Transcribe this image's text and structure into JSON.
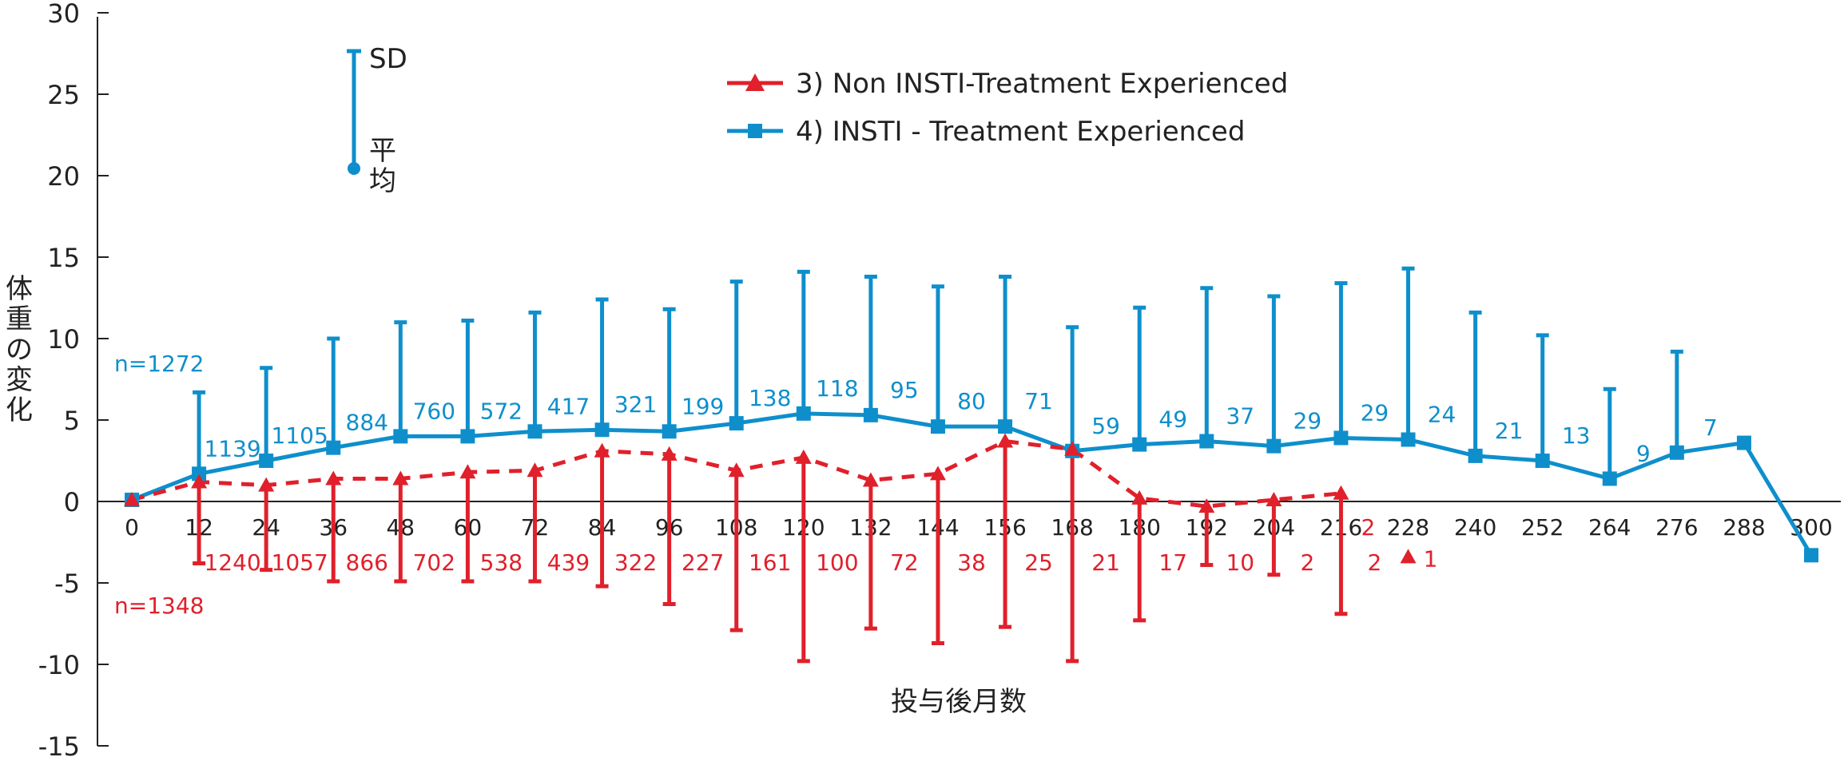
{
  "chart_data": {
    "type": "line",
    "xlabel": "投与後月数",
    "ylabel": "体重の変化",
    "ylim": [
      -15,
      30
    ],
    "yticks": [
      30,
      25,
      20,
      15,
      10,
      5,
      0,
      -5,
      -10,
      -15
    ],
    "ytick_labels": [
      "30",
      "25",
      "20",
      "15",
      "10",
      "5",
      "0",
      "-5",
      "-10",
      "-15"
    ],
    "xticks": [
      0,
      12,
      24,
      36,
      48,
      60,
      72,
      84,
      96,
      108,
      120,
      132,
      144,
      156,
      168,
      180,
      192,
      204,
      216,
      228,
      240,
      252,
      264,
      276,
      288,
      300
    ],
    "xtick_labels": [
      "0",
      "12",
      "24",
      "36",
      "48",
      "60",
      "72",
      "84",
      "96",
      "108",
      "120",
      "132",
      "144",
      "156",
      "168",
      "180",
      "192",
      "204",
      "216",
      "228",
      "240",
      "252",
      "264",
      "276",
      "288",
      "300"
    ],
    "sd_legend": {
      "sd_label": "SD",
      "mean_label": "平均"
    },
    "series": [
      {
        "name": "3) Non INSTI-Treatment Experienced",
        "color": "#e0202b",
        "marker": "triangle",
        "line_style": "dashed",
        "x": [
          0,
          12,
          24,
          36,
          48,
          60,
          72,
          84,
          96,
          108,
          120,
          132,
          144,
          156,
          168,
          180,
          192,
          204,
          216
        ],
        "mean": [
          0.1,
          1.2,
          1.0,
          1.4,
          1.4,
          1.8,
          1.9,
          3.1,
          2.9,
          1.9,
          2.7,
          1.3,
          1.7,
          3.7,
          3.2,
          0.2,
          -0.3,
          0.1,
          0.5
        ],
        "sd_end": [
          0.1,
          -3.8,
          -4.2,
          -4.9,
          -4.9,
          -4.9,
          -4.9,
          -5.2,
          -6.3,
          -7.9,
          -9.8,
          -7.8,
          -8.7,
          -7.7,
          -9.8,
          -7.3,
          -3.9,
          -4.5,
          -6.9
        ],
        "n_label": "n=1348",
        "n_counts": [
          "",
          "1240",
          "1057",
          "866",
          "702",
          "538",
          "439",
          "322",
          "227",
          "161",
          "100",
          "72",
          "38",
          "25",
          "21",
          "17",
          "10",
          "2",
          "2"
        ],
        "extra_point": {
          "x": 228,
          "value": -3.4,
          "count": "1",
          "extra_count": "2"
        }
      },
      {
        "name": "4) INSTI - Treatment Experienced",
        "color": "#0e8fcc",
        "marker": "square",
        "line_style": "solid",
        "x": [
          0,
          12,
          24,
          36,
          48,
          60,
          72,
          84,
          96,
          108,
          120,
          132,
          144,
          156,
          168,
          180,
          192,
          204,
          216,
          228,
          240,
          252,
          264,
          276,
          288,
          300
        ],
        "mean": [
          0.1,
          1.7,
          2.5,
          3.3,
          4.0,
          4.0,
          4.3,
          4.4,
          4.3,
          4.8,
          5.4,
          5.3,
          4.6,
          4.6,
          3.1,
          3.5,
          3.7,
          3.4,
          3.9,
          3.8,
          2.8,
          2.5,
          1.4,
          3.0,
          3.6,
          -3.3
        ],
        "sd_end": [
          null,
          6.7,
          8.2,
          10.0,
          11.0,
          11.1,
          11.6,
          12.4,
          11.8,
          13.5,
          14.1,
          13.8,
          13.2,
          13.8,
          10.7,
          11.9,
          13.1,
          12.6,
          13.4,
          14.3,
          11.6,
          10.2,
          6.9,
          9.2,
          null,
          null
        ],
        "n_label": "n=1272",
        "n_counts": [
          "",
          "1139",
          "1105",
          "884",
          "760",
          "572",
          "417",
          "321",
          "199",
          "138",
          "118",
          "95",
          "80",
          "71",
          "59",
          "49",
          "37",
          "29",
          "29",
          "24",
          "21",
          "13",
          "9",
          "7",
          "",
          ""
        ]
      }
    ]
  }
}
